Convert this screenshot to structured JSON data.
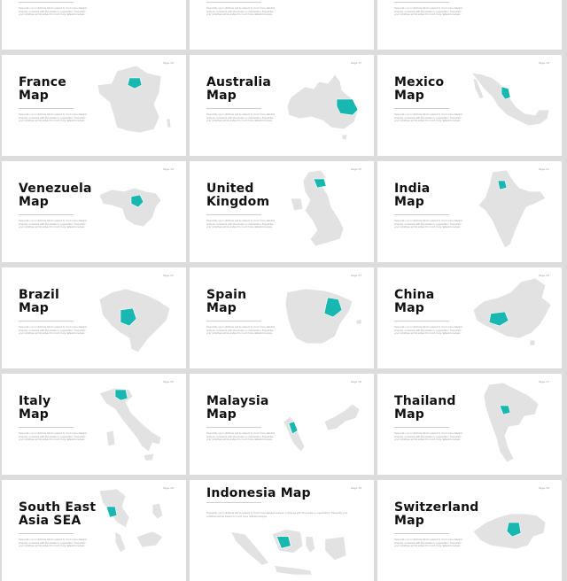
{
  "slides": [
    {
      "id": "top1",
      "title": "",
      "page": "",
      "map": "world"
    },
    {
      "id": "top2",
      "title": "",
      "page": "",
      "map": "germany"
    },
    {
      "id": "top3",
      "title": "",
      "page": "",
      "map": "canada"
    },
    {
      "id": "france",
      "title": "France\nMap",
      "page": "Page 16",
      "map": "france"
    },
    {
      "id": "australia",
      "title": "Australia\nMap",
      "page": "Page 17",
      "map": "australia"
    },
    {
      "id": "mexico",
      "title": "Mexico\nMap",
      "page": "Page 18",
      "map": "mexico"
    },
    {
      "id": "venezuela",
      "title": "Venezuela\nMap",
      "page": "Page 19",
      "map": "venezuela"
    },
    {
      "id": "uk",
      "title": "United\nKingdom",
      "page": "Page 20",
      "map": "uk"
    },
    {
      "id": "india",
      "title": "India\nMap",
      "page": "Page 21",
      "map": "india"
    },
    {
      "id": "brazil",
      "title": "Brazil\nMap",
      "page": "Page 22",
      "map": "brazil"
    },
    {
      "id": "spain",
      "title": "Spain\nMap",
      "page": "Page 23",
      "map": "spain"
    },
    {
      "id": "china",
      "title": "China\nMap",
      "page": "Page 24",
      "map": "china"
    },
    {
      "id": "italy",
      "title": "Italy\nMap",
      "page": "Page 25",
      "map": "italy"
    },
    {
      "id": "malaysia",
      "title": "Malaysia\nMap",
      "page": "Page 26",
      "map": "malaysia"
    },
    {
      "id": "thailand",
      "title": "Thailand\nMap",
      "page": "Page 27",
      "map": "thailand"
    },
    {
      "id": "sea",
      "title": "South East\nAsia SEA",
      "page": "Page 28",
      "map": "sea"
    },
    {
      "id": "indonesia",
      "title": "Indonesia Map",
      "page": "Page 29",
      "map": "indonesia"
    },
    {
      "id": "switzerland",
      "title": "Switzerland\nMap",
      "page": "Page 30",
      "map": "switzerland"
    }
  ],
  "body_text": "Frequently your initiatives will be subject to much more detailed analysis, compared with the people or organization. Frequently your initiatives will be subject to much more detailed analysis.",
  "colors": {
    "highlight": "#19b7b1",
    "land": "#e2e2e2",
    "background": "#dcdcdc"
  }
}
